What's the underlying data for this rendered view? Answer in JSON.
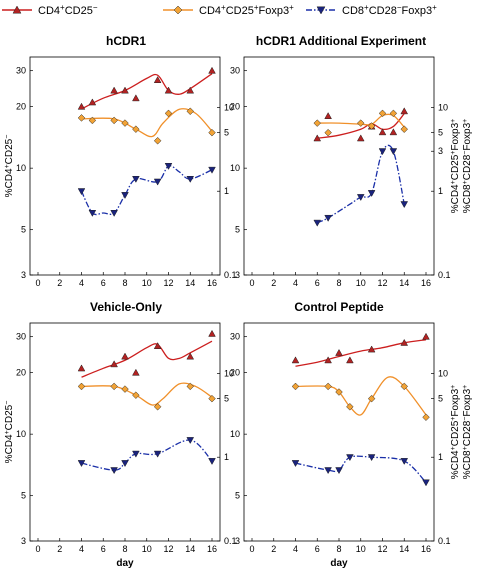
{
  "colors": {
    "cd4_cd25neg": "#cc1f1f",
    "cd4_cd25neg_marker": "#b22222",
    "cd4_foxp3": "#f0902a",
    "cd4_foxp3_marker": "#f2a336",
    "cd8_foxp3": "#1a2fa8",
    "cd8_foxp3_marker": "#1a237e"
  },
  "legend": [
    {
      "parts": [
        [
          "CD4",
          false
        ],
        [
          "+",
          true
        ],
        [
          "CD25",
          false
        ],
        [
          "−",
          true
        ]
      ],
      "marker": "triangle-up",
      "line": "solid",
      "color": "cd4_cd25neg"
    },
    {
      "parts": [
        [
          "CD4",
          false
        ],
        [
          "+",
          true
        ],
        [
          "CD25",
          false
        ],
        [
          "+",
          true
        ],
        [
          "Foxp3",
          false
        ],
        [
          "+",
          true
        ]
      ],
      "marker": "diamond",
      "line": "solid",
      "color": "cd4_foxp3"
    },
    {
      "parts": [
        [
          "CD8",
          false
        ],
        [
          "+",
          true
        ],
        [
          "CD28",
          false
        ],
        [
          "−",
          true
        ],
        [
          "Foxp3",
          false
        ],
        [
          "+",
          true
        ]
      ],
      "marker": "triangle-down",
      "line": "dashdot",
      "color": "cd8_foxp3"
    }
  ],
  "chart_data": [
    {
      "type": "line",
      "title": "hCDR1",
      "xlabel": "",
      "xlim": [
        0,
        16
      ],
      "xticks": [
        0,
        2,
        4,
        6,
        8,
        10,
        12,
        14,
        16
      ],
      "ylim_left": [
        3,
        35
      ],
      "yticks_left": [
        3,
        5,
        10,
        20,
        30
      ],
      "ylim_right": [
        0.1,
        40
      ],
      "yticks_right": [
        0.1,
        1,
        5,
        10
      ],
      "scale": "log",
      "series": [
        {
          "key": "cd4_cd25neg",
          "axis": "left",
          "x": [
            4,
            5,
            7,
            8,
            9,
            11,
            12,
            14,
            16
          ],
          "y": [
            20,
            21,
            24,
            24,
            22,
            27,
            24,
            24,
            30
          ],
          "fit": [
            [
              4,
              19.5
            ],
            [
              6,
              22
            ],
            [
              8,
              24
            ],
            [
              10,
              27.5
            ],
            [
              11,
              28.5
            ],
            [
              12,
              24
            ],
            [
              13,
              23
            ],
            [
              14,
              24.5
            ],
            [
              16,
              29
            ]
          ]
        },
        {
          "key": "cd4_foxp3",
          "axis": "right",
          "x": [
            4,
            5,
            7,
            8,
            9,
            11,
            12,
            14,
            16
          ],
          "y": [
            7.5,
            7.0,
            7.0,
            6.5,
            5.5,
            4.0,
            8.5,
            9.0,
            5.0
          ],
          "fit": [
            [
              4,
              7.3
            ],
            [
              7,
              7.3
            ],
            [
              9,
              5.5
            ],
            [
              10.5,
              4.5
            ],
            [
              11.5,
              6.5
            ],
            [
              13,
              9.5
            ],
            [
              14.5,
              8.5
            ],
            [
              16,
              5.2
            ]
          ]
        },
        {
          "key": "cd8_foxp3",
          "axis": "right",
          "x": [
            4,
            5,
            7,
            8,
            9,
            11,
            12,
            14,
            16
          ],
          "y": [
            1.0,
            0.55,
            0.55,
            0.9,
            1.4,
            1.3,
            2.0,
            1.4,
            1.8
          ],
          "fit": [
            [
              4,
              1.0
            ],
            [
              5,
              0.55
            ],
            [
              6,
              0.55
            ],
            [
              7,
              0.55
            ],
            [
              8,
              0.9
            ],
            [
              9,
              1.4
            ],
            [
              11,
              1.3
            ],
            [
              12,
              2.0
            ],
            [
              13,
              1.7
            ],
            [
              14,
              1.4
            ],
            [
              16,
              1.8
            ]
          ]
        }
      ]
    },
    {
      "type": "line",
      "title": "hCDR1 Additional Experiment",
      "xlabel": "",
      "xlim": [
        0,
        16
      ],
      "xticks": [
        0,
        2,
        4,
        6,
        8,
        10,
        12,
        14,
        16
      ],
      "ylim_left": [
        3,
        35
      ],
      "yticks_left": [
        3,
        5,
        10,
        20,
        30
      ],
      "ylim_right": [
        0.1,
        40
      ],
      "yticks_right": [
        0.1,
        1,
        3,
        5,
        10
      ],
      "scale": "log",
      "series": [
        {
          "key": "cd4_cd25neg",
          "axis": "left",
          "x": [
            6,
            7,
            10,
            11,
            12,
            13,
            14
          ],
          "y": [
            14,
            18,
            14,
            16,
            15,
            15,
            19
          ],
          "fit": [
            [
              6,
              14
            ],
            [
              8,
              14.5
            ],
            [
              10,
              15.5
            ],
            [
              11,
              16.5
            ],
            [
              12,
              15.5
            ],
            [
              13,
              16
            ],
            [
              14,
              18.5
            ]
          ]
        },
        {
          "key": "cd4_foxp3",
          "axis": "right",
          "x": [
            6,
            7,
            10,
            11,
            12,
            13,
            14
          ],
          "y": [
            6.5,
            5.0,
            6.5,
            6.0,
            8.5,
            8.5,
            5.5
          ],
          "fit": [
            [
              6,
              6.5
            ],
            [
              8,
              6.5
            ],
            [
              10,
              6.3
            ],
            [
              11,
              6.3
            ],
            [
              12,
              8.0
            ],
            [
              13,
              8.0
            ],
            [
              14,
              5.8
            ]
          ]
        },
        {
          "key": "cd8_foxp3",
          "axis": "right",
          "x": [
            6,
            7,
            10,
            11,
            12,
            13,
            14
          ],
          "y": [
            0.42,
            0.48,
            0.85,
            0.95,
            3.0,
            3.0,
            0.7
          ],
          "fit": [
            [
              6,
              0.42
            ],
            [
              7,
              0.48
            ],
            [
              9,
              0.7
            ],
            [
              10,
              0.85
            ],
            [
              11,
              0.95
            ],
            [
              12,
              3.0
            ],
            [
              13,
              3.0
            ],
            [
              14,
              0.7
            ]
          ]
        }
      ]
    },
    {
      "type": "line",
      "title": "Vehicle-Only",
      "xlabel": "day",
      "xlim": [
        0,
        16
      ],
      "xticks": [
        0,
        2,
        4,
        6,
        8,
        10,
        12,
        14,
        16
      ],
      "ylim_left": [
        3,
        35
      ],
      "yticks_left": [
        3,
        5,
        10,
        20,
        30
      ],
      "ylim_right": [
        0.1,
        40
      ],
      "yticks_right": [
        0.1,
        1,
        5,
        10
      ],
      "scale": "log",
      "series": [
        {
          "key": "cd4_cd25neg",
          "axis": "left",
          "x": [
            4,
            7,
            8,
            9,
            11,
            14,
            16
          ],
          "y": [
            21,
            22,
            24,
            20,
            27,
            24,
            31
          ],
          "fit": [
            [
              4,
              19
            ],
            [
              6,
              21
            ],
            [
              8,
              23
            ],
            [
              10,
              26.5
            ],
            [
              11,
              27.5
            ],
            [
              12,
              23.5
            ],
            [
              13,
              23.5
            ],
            [
              14,
              25
            ],
            [
              16,
              28.5
            ]
          ]
        },
        {
          "key": "cd4_foxp3",
          "axis": "right",
          "x": [
            4,
            7,
            8,
            9,
            11,
            14,
            16
          ],
          "y": [
            7.0,
            7.0,
            6.5,
            5.5,
            4.0,
            7.0,
            5.0
          ],
          "fit": [
            [
              4,
              7.0
            ],
            [
              7,
              7.0
            ],
            [
              9,
              5.5
            ],
            [
              10.5,
              4.2
            ],
            [
              11.5,
              5.0
            ],
            [
              13,
              7.5
            ],
            [
              14.5,
              7.0
            ],
            [
              16,
              5.2
            ]
          ]
        },
        {
          "key": "cd8_foxp3",
          "axis": "right",
          "x": [
            4,
            7,
            8,
            9,
            11,
            14,
            16
          ],
          "y": [
            0.85,
            0.7,
            0.85,
            1.1,
            1.1,
            1.6,
            0.9
          ],
          "fit": [
            [
              4,
              0.85
            ],
            [
              7,
              0.7
            ],
            [
              8,
              0.85
            ],
            [
              9,
              1.1
            ],
            [
              11,
              1.1
            ],
            [
              14,
              1.6
            ],
            [
              16,
              0.9
            ]
          ]
        }
      ]
    },
    {
      "type": "line",
      "title": "Control Peptide",
      "xlabel": "day",
      "xlim": [
        0,
        16
      ],
      "xticks": [
        0,
        2,
        4,
        6,
        8,
        10,
        12,
        14,
        16
      ],
      "ylim_left": [
        3,
        35
      ],
      "yticks_left": [
        3,
        5,
        10,
        20,
        30
      ],
      "ylim_right": [
        0.1,
        40
      ],
      "yticks_right": [
        0.1,
        1,
        5,
        10
      ],
      "scale": "log",
      "series": [
        {
          "key": "cd4_cd25neg",
          "axis": "left",
          "x": [
            4,
            7,
            8,
            9,
            11,
            14,
            16
          ],
          "y": [
            23,
            23,
            25,
            23,
            26,
            28,
            30
          ],
          "fit": [
            [
              4,
              21.5
            ],
            [
              6,
              22.5
            ],
            [
              8,
              24
            ],
            [
              10,
              25.5
            ],
            [
              12,
              26.5
            ],
            [
              14,
              28
            ],
            [
              16,
              29
            ]
          ]
        },
        {
          "key": "cd4_foxp3",
          "axis": "right",
          "x": [
            4,
            7,
            8,
            9,
            11,
            14,
            16
          ],
          "y": [
            7.0,
            7.0,
            6.0,
            4.0,
            5.0,
            7.0,
            3.0
          ],
          "fit": [
            [
              4,
              7.0
            ],
            [
              7,
              7.0
            ],
            [
              8,
              6.0
            ],
            [
              9,
              4.0
            ],
            [
              10,
              3.2
            ],
            [
              11,
              5.0
            ],
            [
              12.5,
              9.0
            ],
            [
              14,
              7.0
            ],
            [
              16,
              3.2
            ]
          ]
        },
        {
          "key": "cd8_foxp3",
          "axis": "right",
          "x": [
            4,
            7,
            8,
            9,
            11,
            14,
            16
          ],
          "y": [
            0.85,
            0.7,
            0.7,
            1.0,
            1.0,
            0.9,
            0.5
          ],
          "fit": [
            [
              4,
              0.85
            ],
            [
              7,
              0.7
            ],
            [
              8,
              0.7
            ],
            [
              9,
              1.0
            ],
            [
              11,
              1.0
            ],
            [
              14,
              0.9
            ],
            [
              16,
              0.5
            ]
          ]
        }
      ]
    }
  ]
}
